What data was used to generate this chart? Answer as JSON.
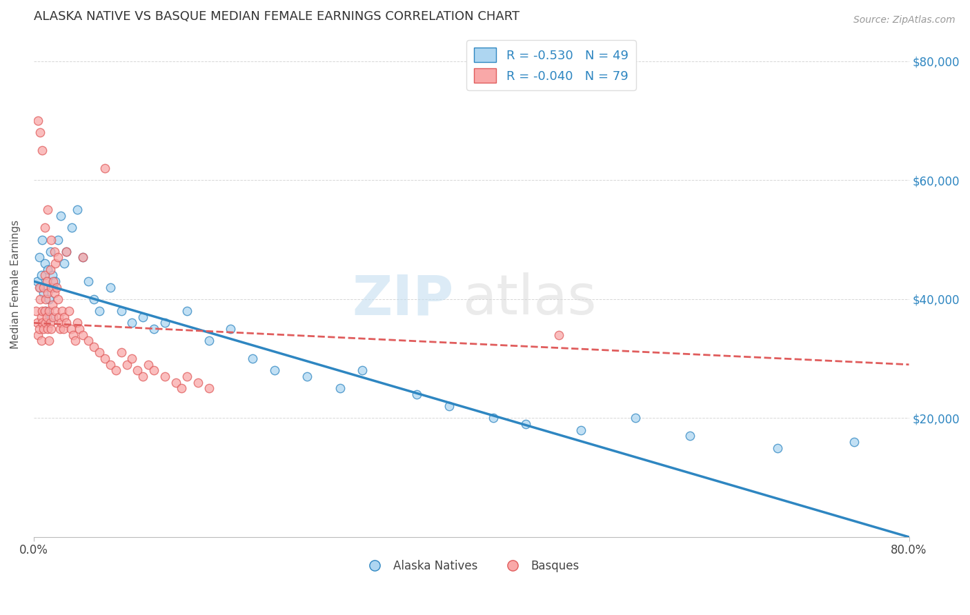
{
  "title": "ALASKA NATIVE VS BASQUE MEDIAN FEMALE EARNINGS CORRELATION CHART",
  "source_text": "Source: ZipAtlas.com",
  "ylabel": "Median Female Earnings",
  "yticks": [
    0,
    20000,
    40000,
    60000,
    80000
  ],
  "xmin": 0.0,
  "xmax": 80.0,
  "ymin": 0,
  "ymax": 85000,
  "r_alaska": -0.53,
  "n_alaska": 49,
  "r_basque": -0.04,
  "n_basque": 79,
  "alaska_color": "#AED6F1",
  "basque_color": "#F9A8A8",
  "alaska_line_color": "#2E86C1",
  "basque_line_color": "#E05C5C",
  "legend_label_alaska": "Alaska Natives",
  "legend_label_basque": "Basques",
  "background_color": "#FFFFFF",
  "watermark_zip": "ZIP",
  "watermark_atlas": "atlas",
  "title_color": "#333333",
  "tick_color_right": "#2E86C1",
  "grid_color": "#CCCCCC",
  "alaska_x": [
    0.3,
    0.5,
    0.6,
    0.7,
    0.8,
    0.9,
    1.0,
    1.1,
    1.2,
    1.3,
    1.4,
    1.5,
    1.6,
    1.7,
    1.8,
    2.0,
    2.2,
    2.5,
    2.8,
    3.0,
    3.5,
    4.0,
    4.5,
    5.0,
    5.5,
    6.0,
    7.0,
    8.0,
    9.0,
    10.0,
    11.0,
    12.0,
    14.0,
    16.0,
    18.0,
    20.0,
    22.0,
    25.0,
    28.0,
    30.0,
    35.0,
    38.0,
    42.0,
    45.0,
    50.0,
    55.0,
    60.0,
    68.0,
    75.0
  ],
  "alaska_y": [
    43000,
    47000,
    42000,
    44000,
    50000,
    41000,
    46000,
    38000,
    43000,
    45000,
    40000,
    48000,
    37000,
    44000,
    42000,
    43000,
    50000,
    54000,
    46000,
    48000,
    52000,
    55000,
    47000,
    43000,
    40000,
    38000,
    42000,
    38000,
    36000,
    37000,
    35000,
    36000,
    38000,
    33000,
    35000,
    30000,
    28000,
    27000,
    25000,
    28000,
    24000,
    22000,
    20000,
    19000,
    18000,
    20000,
    17000,
    15000,
    16000
  ],
  "basque_x": [
    0.2,
    0.3,
    0.4,
    0.5,
    0.5,
    0.6,
    0.7,
    0.7,
    0.8,
    0.8,
    0.9,
    0.9,
    1.0,
    1.0,
    1.1,
    1.1,
    1.2,
    1.2,
    1.3,
    1.3,
    1.4,
    1.4,
    1.5,
    1.5,
    1.6,
    1.6,
    1.7,
    1.8,
    1.8,
    1.9,
    2.0,
    2.0,
    2.1,
    2.2,
    2.3,
    2.4,
    2.5,
    2.6,
    2.7,
    2.8,
    3.0,
    3.2,
    3.4,
    3.6,
    3.8,
    4.0,
    4.2,
    4.5,
    5.0,
    5.5,
    6.0,
    6.5,
    7.0,
    7.5,
    8.0,
    8.5,
    9.0,
    9.5,
    10.0,
    10.5,
    11.0,
    12.0,
    13.0,
    13.5,
    14.0,
    15.0,
    16.0,
    0.4,
    0.6,
    0.8,
    1.0,
    1.3,
    1.6,
    1.9,
    2.2,
    3.0,
    4.5,
    6.5,
    48.0
  ],
  "basque_y": [
    38000,
    36000,
    34000,
    42000,
    35000,
    40000,
    37000,
    33000,
    38000,
    36000,
    42000,
    35000,
    44000,
    38000,
    36000,
    40000,
    43000,
    37000,
    41000,
    35000,
    38000,
    33000,
    45000,
    36000,
    42000,
    35000,
    39000,
    43000,
    37000,
    41000,
    46000,
    38000,
    42000,
    40000,
    37000,
    35000,
    36000,
    38000,
    35000,
    37000,
    36000,
    38000,
    35000,
    34000,
    33000,
    36000,
    35000,
    34000,
    33000,
    32000,
    31000,
    30000,
    29000,
    28000,
    31000,
    29000,
    30000,
    28000,
    27000,
    29000,
    28000,
    27000,
    26000,
    25000,
    27000,
    26000,
    25000,
    70000,
    68000,
    65000,
    52000,
    55000,
    50000,
    48000,
    47000,
    48000,
    47000,
    62000,
    34000
  ]
}
